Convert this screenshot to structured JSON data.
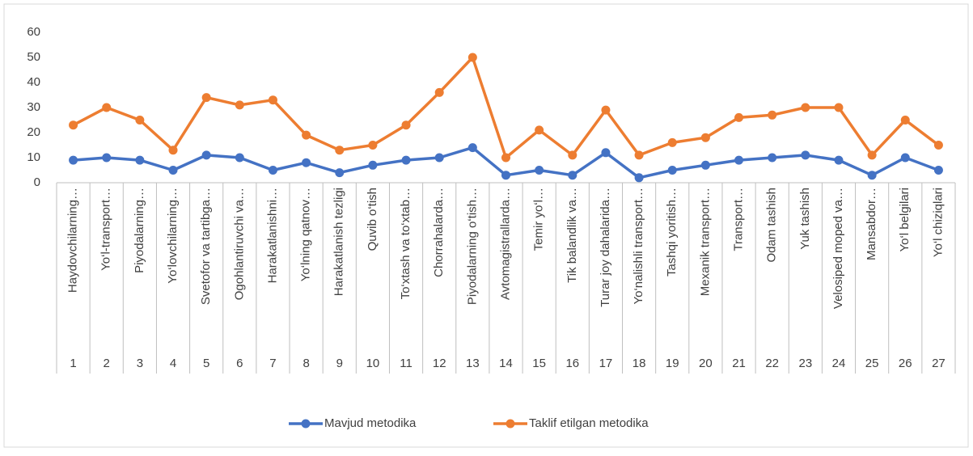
{
  "chart_data": {
    "type": "line",
    "categories": [
      "1",
      "2",
      "3",
      "4",
      "5",
      "6",
      "7",
      "8",
      "9",
      "10",
      "11",
      "12",
      "13",
      "14",
      "15",
      "16",
      "17",
      "18",
      "19",
      "20",
      "21",
      "22",
      "23",
      "24",
      "25",
      "26",
      "27"
    ],
    "category_names": [
      "Haydovchilarning…",
      "Yo‘l-transport…",
      "Piyodalarning…",
      "Yo‘lovchilarning…",
      "Svetofor va tartibga…",
      "Ogohlantiruvchi va…",
      "Harakatlanishni…",
      "Yo‘lning qatnov…",
      "Harakatlanish tezligi",
      "Quvib o‘tish",
      "To‘xtash va to‘xtab…",
      "Chorrahalarda…",
      "Piyodalarning o‘tish…",
      "Avtomagistrallarda…",
      "Temir yo‘l…",
      "Tik balandlik va…",
      "Turar joy dahalarida…",
      "Yo‘nalishli transport…",
      "Tashqi yoritish…",
      "Mexanik transport…",
      "Transport…",
      "Odam tashish",
      "Yuk tashish",
      "Velosiped moped va…",
      "Mansabdor…",
      "Yo‘l belgilari",
      "Yo‘l chiziqlari"
    ],
    "series": [
      {
        "name": "Mavjud metodika",
        "color": "#4472c4",
        "values": [
          9,
          10,
          9,
          5,
          11,
          10,
          5,
          8,
          4,
          7,
          9,
          10,
          14,
          3,
          5,
          3,
          12,
          2,
          5,
          7,
          9,
          10,
          11,
          9,
          3,
          10,
          5
        ]
      },
      {
        "name": "Taklif etilgan metodika",
        "color": "#ed7d31",
        "values": [
          23,
          30,
          25,
          13,
          34,
          31,
          33,
          19,
          13,
          15,
          23,
          36,
          50,
          10,
          21,
          11,
          29,
          11,
          16,
          18,
          26,
          27,
          30,
          30,
          11,
          25,
          15
        ]
      }
    ],
    "ylim": [
      0,
      60
    ],
    "yticks": [
      0,
      10,
      20,
      30,
      40,
      50,
      60
    ],
    "grid": false,
    "legend": "bottom"
  }
}
